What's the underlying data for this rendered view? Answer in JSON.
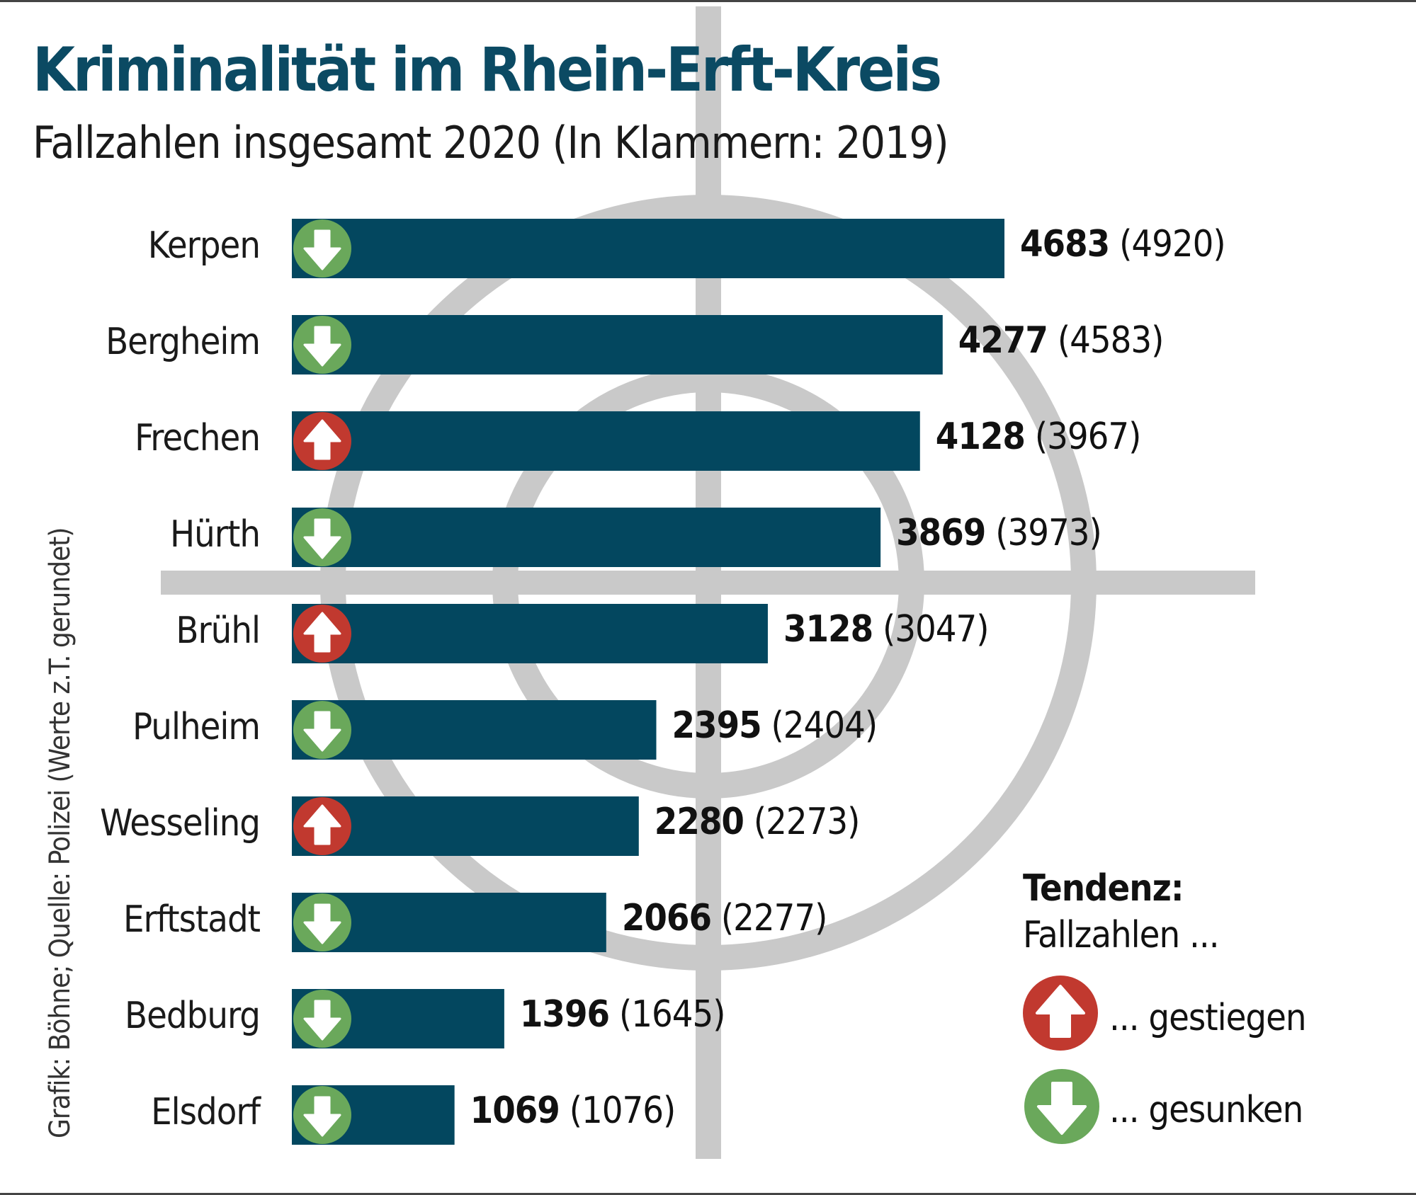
{
  "colors": {
    "bar": "#03475f",
    "title": "#0b4a63",
    "up": "#c1392f",
    "down": "#6aa85b",
    "target": "#c9c9c9"
  },
  "chart_data": {
    "type": "bar",
    "orientation": "horizontal",
    "title": "Kriminalität im Rhein-Erft-Kreis",
    "subtitle": "Fallzahlen insgesamt 2020 (In Klammern: 2019)",
    "categories": [
      "Kerpen",
      "Bergheim",
      "Frechen",
      "Hürth",
      "Brühl",
      "Pulheim",
      "Wesseling",
      "Erftstadt",
      "Bedburg",
      "Elsdorf"
    ],
    "series": [
      {
        "name": "2020",
        "values": [
          4683,
          4277,
          4128,
          3869,
          3128,
          2395,
          2280,
          2066,
          1396,
          1069
        ]
      },
      {
        "name": "2019",
        "values": [
          4920,
          4583,
          3967,
          3973,
          3047,
          2404,
          2273,
          2277,
          1645,
          1076
        ]
      }
    ],
    "trend": [
      "down",
      "down",
      "up",
      "down",
      "up",
      "down",
      "up",
      "down",
      "down",
      "down"
    ],
    "grid": false
  },
  "labels": [
    {
      "v2020": "4683",
      "v2019": "(4920)"
    },
    {
      "v2020": "4277",
      "v2019": "(4583)"
    },
    {
      "v2020": "4128",
      "v2019": "(3967)"
    },
    {
      "v2020": "3869",
      "v2019": "(3973)"
    },
    {
      "v2020": "3128",
      "v2019": "(3047)"
    },
    {
      "v2020": "2395",
      "v2019": "(2404)"
    },
    {
      "v2020": "2280",
      "v2019": "(2273)"
    },
    {
      "v2020": "2066",
      "v2019": "(2277)"
    },
    {
      "v2020": "1396",
      "v2019": "(1645)"
    },
    {
      "v2020": "1069",
      "v2019": "(1076)"
    }
  ],
  "legend": {
    "title": "Tendenz:",
    "subtitle": "Fallzahlen ...",
    "up_label": "... gestiegen",
    "down_label": "... gesunken"
  },
  "source": "Grafik: Böhne; Quelle: Polizei (Werte z.T. gerundet)"
}
